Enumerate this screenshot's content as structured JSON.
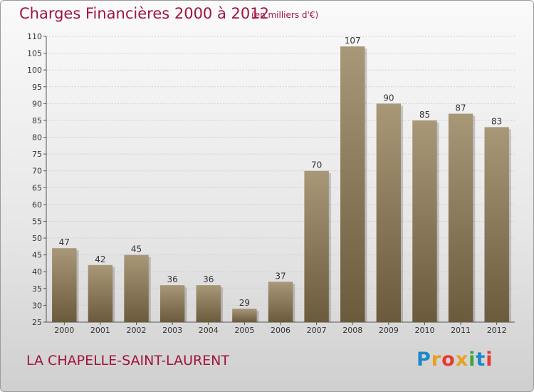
{
  "header": {
    "title": "Charges Financières 2000 à 2012",
    "subtitle": "(en milliers d'€)"
  },
  "footer": {
    "location": "LA CHAPELLE-SAINT-LAURENT",
    "logo": "Proxiti"
  },
  "colors": {
    "title": "#a0143c",
    "bar_top": "#a89878",
    "bar_bottom": "#6b5a3c"
  },
  "chart_data": {
    "type": "bar",
    "title": "Charges Financières 2000 à 2012",
    "subtitle": "(en milliers d'€)",
    "xlabel": "",
    "ylabel": "",
    "categories": [
      "2000",
      "2001",
      "2002",
      "2003",
      "2004",
      "2005",
      "2006",
      "2007",
      "2008",
      "2009",
      "2010",
      "2011",
      "2012"
    ],
    "values": [
      47,
      42,
      45,
      36,
      36,
      29,
      37,
      70,
      107,
      90,
      85,
      87,
      83
    ],
    "ylim": [
      25,
      110
    ],
    "yticks": [
      25,
      30,
      35,
      40,
      45,
      50,
      55,
      60,
      65,
      70,
      75,
      80,
      85,
      90,
      95,
      100,
      105,
      110
    ],
    "grid": true,
    "legend": "none"
  }
}
